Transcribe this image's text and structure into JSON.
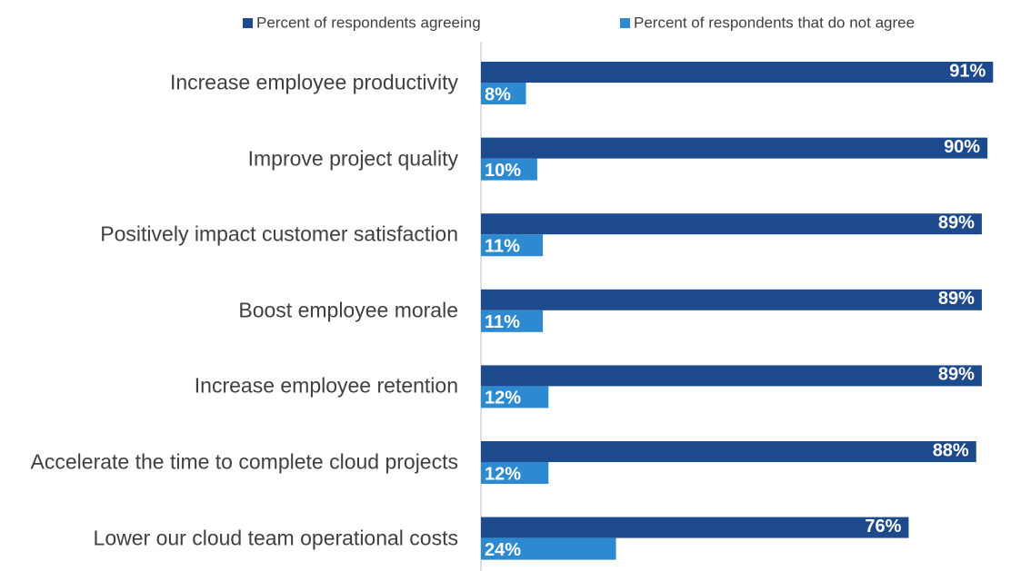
{
  "chart_data": {
    "type": "bar",
    "orientation": "horizontal",
    "categories": [
      "Increase employee productivity",
      "Improve project quality",
      "Positively impact customer satisfaction",
      "Boost employee morale",
      "Increase employee retention",
      "Accelerate the time to complete cloud projects",
      "Lower our cloud team operational costs"
    ],
    "series": [
      {
        "name": "Percent of respondents agreeing",
        "color": "#1c4a8c",
        "values": [
          91,
          90,
          89,
          89,
          89,
          88,
          76
        ],
        "value_labels": [
          "91%",
          "90%",
          "89%",
          "89%",
          "89%",
          "88%",
          "76%"
        ]
      },
      {
        "name": "Percent of respondents that do not agree",
        "color": "#2e8ad0",
        "values": [
          8,
          10,
          11,
          11,
          12,
          12,
          24
        ],
        "value_labels": [
          "8%",
          "10%",
          "11%",
          "11%",
          "12%",
          "12%",
          "24%"
        ]
      }
    ],
    "legend": "top"
  }
}
